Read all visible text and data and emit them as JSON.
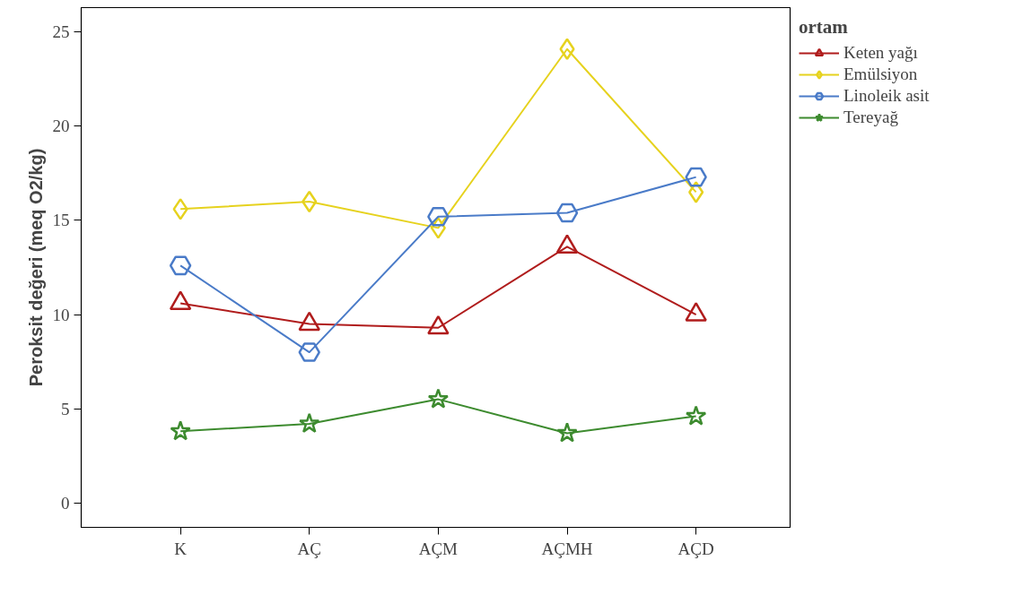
{
  "chart_data": {
    "type": "line",
    "ylabel": "Peroksit değeri (meq O2/kg)",
    "legend_title": "ortam",
    "legend": "right",
    "grid": false,
    "categories": [
      "K",
      "AÇ",
      "AÇM",
      "AÇMH",
      "AÇD"
    ],
    "ylim": [
      -1.3,
      26.3
    ],
    "yticks": [
      0,
      5,
      10,
      15,
      20,
      25
    ],
    "series": [
      {
        "name": "Keten yağı",
        "color": "#b01c1c",
        "marker": "triangle",
        "values": [
          10.6,
          9.5,
          9.3,
          13.6,
          10.0
        ]
      },
      {
        "name": "Emülsiyon",
        "color": "#e6d21e",
        "marker": "diamond",
        "values": [
          15.6,
          16.0,
          14.6,
          24.1,
          16.5
        ]
      },
      {
        "name": "Linoleik asit",
        "color": "#4a7bc8",
        "marker": "circle",
        "values": [
          12.6,
          8.0,
          15.2,
          15.4,
          17.3
        ]
      },
      {
        "name": "Tereyağ",
        "color": "#3d8b2f",
        "marker": "star",
        "values": [
          3.8,
          4.2,
          5.5,
          3.7,
          4.6
        ]
      }
    ]
  }
}
